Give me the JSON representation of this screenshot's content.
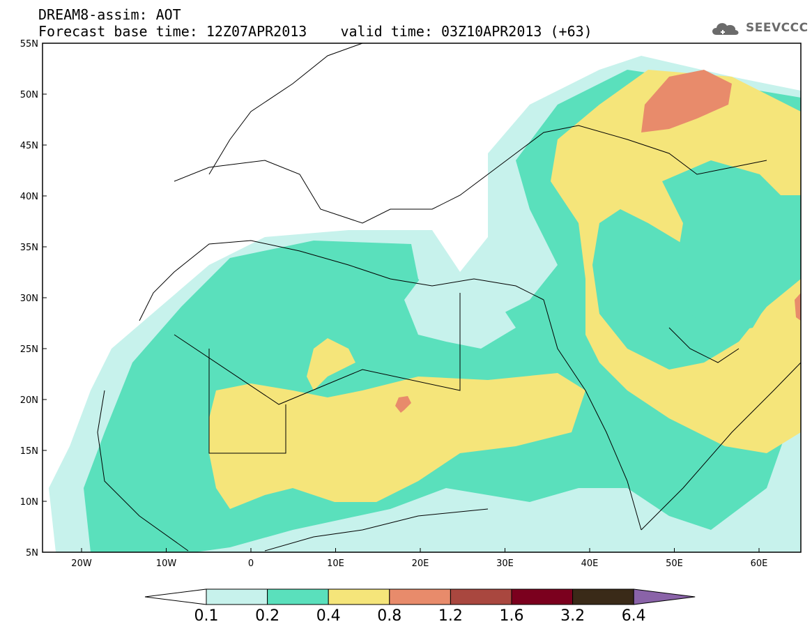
{
  "header": {
    "line1": "DREAM8-assim: AOT",
    "line2": "Forecast base time: 12Z07APR2013    valid time: 03Z10APR2013 (+63)"
  },
  "logo": {
    "text": "SEEVCCC",
    "icon": "cloud-icon"
  },
  "map": {
    "lat_labels": [
      "55N",
      "50N",
      "45N",
      "40N",
      "35N",
      "30N",
      "25N",
      "20N",
      "15N",
      "10N",
      "5N"
    ],
    "lon_labels": [
      "20W",
      "10W",
      "0",
      "10E",
      "20E",
      "30E",
      "40E",
      "50E",
      "60E"
    ]
  },
  "colorbar": {
    "colors": [
      "#c7f2ec",
      "#5ae0bc",
      "#f5e57a",
      "#e88b6b",
      "#a9473f",
      "#7b001e",
      "#3a2a18"
    ],
    "under_color": "#ffffff",
    "over_color": "#8a63a8",
    "labels": [
      "0.1",
      "0.2",
      "0.4",
      "0.8",
      "1.2",
      "1.6",
      "3.2",
      "6.4"
    ]
  }
}
